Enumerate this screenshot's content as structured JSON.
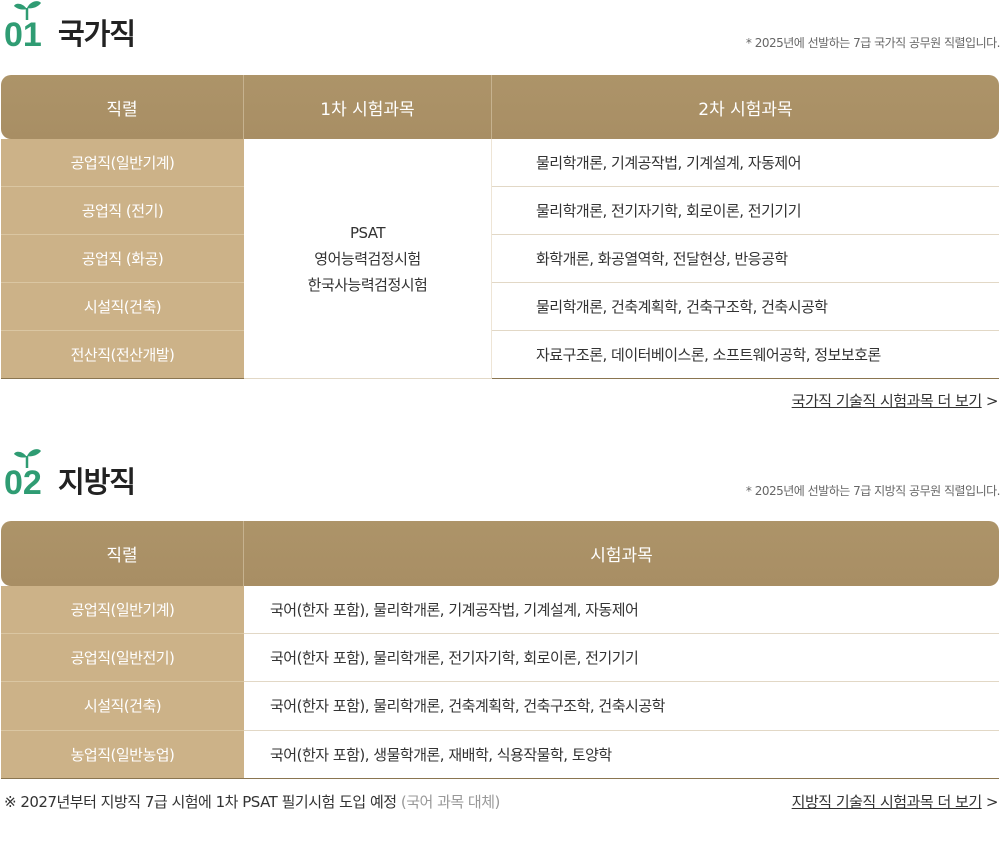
{
  "national": {
    "number": "01",
    "title": "국가직",
    "note": "* 2025년에 선발하는 7급 국가직 공무원 직렬입니다.",
    "headers": [
      "직렬",
      "1차 시험과목",
      "2차 시험과목"
    ],
    "first_subjects": [
      "PSAT",
      "영어능력검정시험",
      "한국사능력검정시험"
    ],
    "rows": [
      {
        "job": "공업직(일반기계)",
        "second": "물리학개론, 기계공작법, 기계설계, 자동제어"
      },
      {
        "job": "공업직 (전기)",
        "second": "물리학개론, 전기자기학, 회로이론, 전기기기"
      },
      {
        "job": "공업직 (화공)",
        "second": "화학개론, 화공열역학, 전달현상, 반응공학"
      },
      {
        "job": "시설직(건축)",
        "second": "물리학개론, 건축계획학, 건축구조학, 건축시공학"
      },
      {
        "job": "전산직(전산개발)",
        "second": "자료구조론, 데이터베이스론, 소프트웨어공학, 정보보호론"
      }
    ],
    "more_link": "국가직 기술직 시험과목 더 보기",
    "more_arrow": ">"
  },
  "local": {
    "number": "02",
    "title": "지방직",
    "note": "* 2025년에 선발하는 7급 지방직 공무원 직렬입니다.",
    "headers": [
      "직렬",
      "시험과목"
    ],
    "rows": [
      {
        "job": "공업직(일반기계)",
        "subjects": "국어(한자 포함), 물리학개론, 기계공작법, 기계설계, 자동제어"
      },
      {
        "job": "공업직(일반전기)",
        "subjects": "국어(한자 포함), 물리학개론, 전기자기학, 회로이론, 전기기기"
      },
      {
        "job": "시설직(건축)",
        "subjects": "국어(한자 포함), 물리학개론, 건축계획학, 건축구조학, 건축시공학"
      },
      {
        "job": "농업직(일반농업)",
        "subjects": "국어(한자 포함), 생물학개론, 재배학, 식용작물학, 토양학"
      }
    ],
    "footnote": "※  2027년부터 지방직 7급 시험에 1차 PSAT 필기시험 도입 예정",
    "footnote_sub": "(국어 과목 대체)",
    "more_link": "지방직 기술직 시험과목 더 보기",
    "more_arrow": ">"
  },
  "colors": {
    "accent": "#2f9c73",
    "header": "#aa9068",
    "job_col": "#ccb288"
  }
}
